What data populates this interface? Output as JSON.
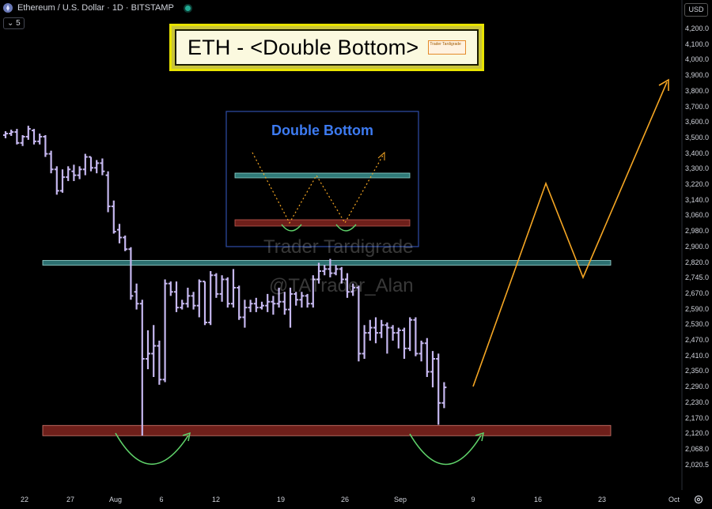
{
  "header": {
    "symbol_text": "Ethereum / U.S. Dollar · 1D · BITSTAMP",
    "indicator_badge": "5",
    "currency_button": "USD"
  },
  "title_box": {
    "text": "ETH - <Double Bottom>",
    "badge_text": "Trader Tardigrade"
  },
  "inset": {
    "title": "Double Bottom"
  },
  "watermarks": [
    "Trader Tardigrade",
    "@TATrader_Alan"
  ],
  "colors": {
    "candle": "#c6b8f0",
    "resistance": "#4d8c8c",
    "support": "#6e1f1a",
    "projection": "#f5a623",
    "curve": "#5fd26a",
    "title_border": "#e8e300",
    "inset_title": "#3d7bf2"
  },
  "chart_data": {
    "type": "ohlc",
    "title": "ETH - <Double Bottom>",
    "y_axis": {
      "range": [
        1990,
        4300
      ],
      "ticks": [
        "4,200.0",
        "4,100.0",
        "4,000.0",
        "3,900.0",
        "3,800.0",
        "3,700.0",
        "3,600.0",
        "3,500.0",
        "3,400.0",
        "3,300.0",
        "3,220.0",
        "3,140.0",
        "3,060.0",
        "2,980.0",
        "2,900.0",
        "2,820.0",
        "2,745.0",
        "2,670.0",
        "2,590.0",
        "2,530.0",
        "2,470.0",
        "2,410.0",
        "2,350.0",
        "2,290.0",
        "2,230.0",
        "2,170.0",
        "2,120.0",
        "2,068.0",
        "2,020.5"
      ]
    },
    "x_axis": {
      "ticks": [
        "22",
        "27",
        "Aug",
        "6",
        "12",
        "19",
        "26",
        "Sep",
        "9",
        "16",
        "23",
        "Oct"
      ]
    },
    "ohlc": [
      {
        "o": 3520,
        "h": 3545,
        "l": 3500,
        "c": 3530
      },
      {
        "o": 3530,
        "h": 3555,
        "l": 3515,
        "c": 3540
      },
      {
        "o": 3540,
        "h": 3560,
        "l": 3460,
        "c": 3470
      },
      {
        "o": 3470,
        "h": 3520,
        "l": 3450,
        "c": 3510
      },
      {
        "o": 3510,
        "h": 3580,
        "l": 3490,
        "c": 3560
      },
      {
        "o": 3550,
        "h": 3560,
        "l": 3460,
        "c": 3480
      },
      {
        "o": 3480,
        "h": 3530,
        "l": 3460,
        "c": 3510
      },
      {
        "o": 3510,
        "h": 3520,
        "l": 3380,
        "c": 3400
      },
      {
        "o": 3400,
        "h": 3420,
        "l": 3280,
        "c": 3300
      },
      {
        "o": 3300,
        "h": 3320,
        "l": 3170,
        "c": 3190
      },
      {
        "o": 3190,
        "h": 3300,
        "l": 3180,
        "c": 3260
      },
      {
        "o": 3260,
        "h": 3320,
        "l": 3240,
        "c": 3300
      },
      {
        "o": 3290,
        "h": 3330,
        "l": 3240,
        "c": 3270
      },
      {
        "o": 3270,
        "h": 3320,
        "l": 3250,
        "c": 3300
      },
      {
        "o": 3300,
        "h": 3400,
        "l": 3270,
        "c": 3380
      },
      {
        "o": 3380,
        "h": 3380,
        "l": 3290,
        "c": 3310
      },
      {
        "o": 3310,
        "h": 3360,
        "l": 3280,
        "c": 3340
      },
      {
        "o": 3340,
        "h": 3370,
        "l": 3270,
        "c": 3290
      },
      {
        "o": 3270,
        "h": 3290,
        "l": 3080,
        "c": 3110
      },
      {
        "o": 3110,
        "h": 3140,
        "l": 2970,
        "c": 2980
      },
      {
        "o": 2990,
        "h": 3020,
        "l": 2920,
        "c": 2950
      },
      {
        "o": 2950,
        "h": 2960,
        "l": 2880,
        "c": 2890
      },
      {
        "o": 2890,
        "h": 2900,
        "l": 2640,
        "c": 2660
      },
      {
        "o": 2680,
        "h": 2720,
        "l": 2590,
        "c": 2620
      },
      {
        "o": 2620,
        "h": 2640,
        "l": 2115,
        "c": 2400
      },
      {
        "o": 2400,
        "h": 2510,
        "l": 2360,
        "c": 2420
      },
      {
        "o": 2420,
        "h": 2530,
        "l": 2330,
        "c": 2450
      },
      {
        "o": 2450,
        "h": 2470,
        "l": 2300,
        "c": 2320
      },
      {
        "o": 2320,
        "h": 2740,
        "l": 2310,
        "c": 2720
      },
      {
        "o": 2720,
        "h": 2730,
        "l": 2660,
        "c": 2680
      },
      {
        "o": 2680,
        "h": 2730,
        "l": 2580,
        "c": 2600
      },
      {
        "o": 2600,
        "h": 2640,
        "l": 2590,
        "c": 2620
      },
      {
        "o": 2620,
        "h": 2700,
        "l": 2600,
        "c": 2660
      },
      {
        "o": 2660,
        "h": 2680,
        "l": 2590,
        "c": 2610
      },
      {
        "o": 2610,
        "h": 2740,
        "l": 2560,
        "c": 2730
      },
      {
        "o": 2730,
        "h": 2730,
        "l": 2530,
        "c": 2540
      },
      {
        "o": 2540,
        "h": 2780,
        "l": 2530,
        "c": 2760
      },
      {
        "o": 2760,
        "h": 2770,
        "l": 2650,
        "c": 2670
      },
      {
        "o": 2670,
        "h": 2760,
        "l": 2630,
        "c": 2740
      },
      {
        "o": 2740,
        "h": 2750,
        "l": 2600,
        "c": 2620
      },
      {
        "o": 2620,
        "h": 2790,
        "l": 2600,
        "c": 2700
      },
      {
        "o": 2700,
        "h": 2710,
        "l": 2550,
        "c": 2560
      },
      {
        "o": 2560,
        "h": 2640,
        "l": 2520,
        "c": 2600
      },
      {
        "o": 2600,
        "h": 2640,
        "l": 2580,
        "c": 2620
      },
      {
        "o": 2620,
        "h": 2650,
        "l": 2580,
        "c": 2600
      },
      {
        "o": 2600,
        "h": 2630,
        "l": 2590,
        "c": 2610
      },
      {
        "o": 2610,
        "h": 2670,
        "l": 2580,
        "c": 2630
      },
      {
        "o": 2630,
        "h": 2660,
        "l": 2570,
        "c": 2620
      },
      {
        "o": 2620,
        "h": 2700,
        "l": 2600,
        "c": 2630
      },
      {
        "o": 2630,
        "h": 2680,
        "l": 2570,
        "c": 2590
      },
      {
        "o": 2590,
        "h": 2700,
        "l": 2520,
        "c": 2670
      },
      {
        "o": 2670,
        "h": 2680,
        "l": 2610,
        "c": 2640
      },
      {
        "o": 2640,
        "h": 2680,
        "l": 2600,
        "c": 2660
      },
      {
        "o": 2660,
        "h": 2670,
        "l": 2600,
        "c": 2620
      },
      {
        "o": 2620,
        "h": 2760,
        "l": 2600,
        "c": 2740
      },
      {
        "o": 2740,
        "h": 2820,
        "l": 2720,
        "c": 2780
      },
      {
        "o": 2780,
        "h": 2810,
        "l": 2760,
        "c": 2790
      },
      {
        "o": 2790,
        "h": 2840,
        "l": 2750,
        "c": 2770
      },
      {
        "o": 2770,
        "h": 2810,
        "l": 2760,
        "c": 2790
      },
      {
        "o": 2790,
        "h": 2800,
        "l": 2720,
        "c": 2740
      },
      {
        "o": 2740,
        "h": 2770,
        "l": 2650,
        "c": 2680
      },
      {
        "o": 2680,
        "h": 2720,
        "l": 2660,
        "c": 2700
      },
      {
        "o": 2700,
        "h": 2710,
        "l": 2390,
        "c": 2420
      },
      {
        "o": 2420,
        "h": 2530,
        "l": 2400,
        "c": 2500
      },
      {
        "o": 2500,
        "h": 2550,
        "l": 2470,
        "c": 2520
      },
      {
        "o": 2520,
        "h": 2560,
        "l": 2460,
        "c": 2500
      },
      {
        "o": 2500,
        "h": 2550,
        "l": 2480,
        "c": 2530
      },
      {
        "o": 2530,
        "h": 2540,
        "l": 2420,
        "c": 2520
      },
      {
        "o": 2520,
        "h": 2530,
        "l": 2470,
        "c": 2500
      },
      {
        "o": 2500,
        "h": 2520,
        "l": 2440,
        "c": 2510
      },
      {
        "o": 2510,
        "h": 2520,
        "l": 2400,
        "c": 2440
      },
      {
        "o": 2440,
        "h": 2560,
        "l": 2430,
        "c": 2550
      },
      {
        "o": 2550,
        "h": 2560,
        "l": 2410,
        "c": 2420
      },
      {
        "o": 2420,
        "h": 2470,
        "l": 2390,
        "c": 2460
      },
      {
        "o": 2460,
        "h": 2480,
        "l": 2330,
        "c": 2350
      },
      {
        "o": 2350,
        "h": 2430,
        "l": 2290,
        "c": 2400
      },
      {
        "o": 2400,
        "h": 2420,
        "l": 2150,
        "c": 2230
      },
      {
        "o": 2230,
        "h": 2310,
        "l": 2210,
        "c": 2290
      }
    ],
    "levels": {
      "resistance": 2820,
      "support": 2130
    }
  }
}
